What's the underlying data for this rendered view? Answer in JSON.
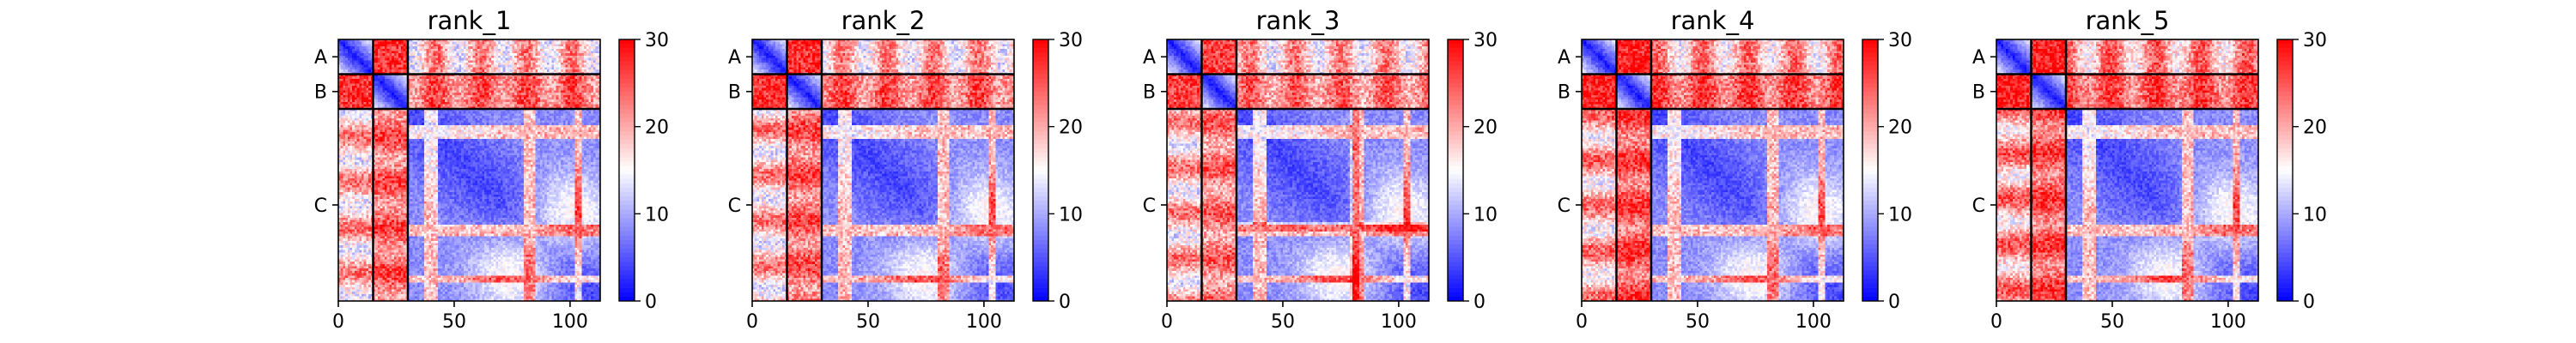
{
  "chart_data": [
    {
      "type": "heatmap",
      "title": "rank_1",
      "chains": [
        {
          "label": "A",
          "length": 15
        },
        {
          "label": "B",
          "length": 15
        },
        {
          "label": "C",
          "length": 83
        }
      ],
      "total_length": 113,
      "xticks": [
        0,
        50,
        100
      ],
      "xlim": [
        0,
        113
      ],
      "colorbar": {
        "min": 0,
        "max": 30,
        "ticks": [
          0,
          10,
          20,
          30
        ],
        "colors": [
          "#0000ff",
          "#ffffff",
          "#ff0000"
        ]
      },
      "offdiag_level": {
        "A-B": 27,
        "A-C": 23,
        "B-C": 26
      }
    },
    {
      "type": "heatmap",
      "title": "rank_2",
      "chains": [
        {
          "label": "A",
          "length": 15
        },
        {
          "label": "B",
          "length": 15
        },
        {
          "label": "C",
          "length": 83
        }
      ],
      "total_length": 113,
      "xticks": [
        0,
        50,
        100
      ],
      "xlim": [
        0,
        113
      ],
      "colorbar": {
        "min": 0,
        "max": 30,
        "ticks": [
          0,
          10,
          20,
          30
        ],
        "colors": [
          "#0000ff",
          "#ffffff",
          "#ff0000"
        ]
      },
      "offdiag_level": {
        "A-B": 27,
        "A-C": 23,
        "B-C": 26
      }
    },
    {
      "type": "heatmap",
      "title": "rank_3",
      "chains": [
        {
          "label": "A",
          "length": 15
        },
        {
          "label": "B",
          "length": 15
        },
        {
          "label": "C",
          "length": 83
        }
      ],
      "total_length": 113,
      "xticks": [
        0,
        50,
        100
      ],
      "xlim": [
        0,
        113
      ],
      "colorbar": {
        "min": 0,
        "max": 30,
        "ticks": [
          0,
          10,
          20,
          30
        ],
        "colors": [
          "#0000ff",
          "#ffffff",
          "#ff0000"
        ]
      },
      "offdiag_level": {
        "A-B": 26,
        "A-C": 23,
        "B-C": 25
      }
    },
    {
      "type": "heatmap",
      "title": "rank_4",
      "chains": [
        {
          "label": "A",
          "length": 15
        },
        {
          "label": "B",
          "length": 15
        },
        {
          "label": "C",
          "length": 83
        }
      ],
      "total_length": 113,
      "xticks": [
        0,
        50,
        100
      ],
      "xlim": [
        0,
        113
      ],
      "colorbar": {
        "min": 0,
        "max": 30,
        "ticks": [
          0,
          10,
          20,
          30
        ],
        "colors": [
          "#0000ff",
          "#ffffff",
          "#ff0000"
        ]
      },
      "offdiag_level": {
        "A-B": 28,
        "A-C": 24,
        "B-C": 27
      }
    },
    {
      "type": "heatmap",
      "title": "rank_5",
      "chains": [
        {
          "label": "A",
          "length": 15
        },
        {
          "label": "B",
          "length": 15
        },
        {
          "label": "C",
          "length": 83
        }
      ],
      "total_length": 113,
      "xticks": [
        0,
        50,
        100
      ],
      "xlim": [
        0,
        113
      ],
      "colorbar": {
        "min": 0,
        "max": 30,
        "ticks": [
          0,
          10,
          20,
          30
        ],
        "colors": [
          "#0000ff",
          "#ffffff",
          "#ff0000"
        ]
      },
      "offdiag_level": {
        "A-B": 28,
        "A-C": 25,
        "B-C": 27
      }
    }
  ]
}
